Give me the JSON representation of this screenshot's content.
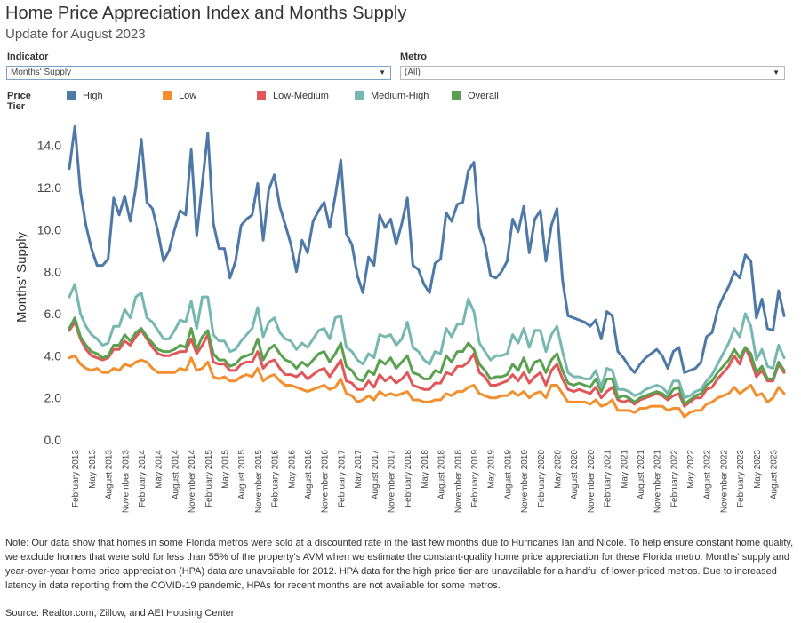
{
  "header": {
    "title": "Home Price Appreciation Index and Months Supply",
    "subtitle": "Update for August 2023"
  },
  "filters": {
    "indicator": {
      "label": "Indicator",
      "value": "Months' Supply"
    },
    "metro": {
      "label": "Metro",
      "value": "(All)"
    }
  },
  "legend": {
    "title": "Price Tier",
    "items": [
      {
        "name": "High",
        "color": "#4e79a7"
      },
      {
        "name": "Low",
        "color": "#f28e2b"
      },
      {
        "name": "Low-Medium",
        "color": "#e15759"
      },
      {
        "name": "Medium-High",
        "color": "#76b7b2"
      },
      {
        "name": "Overall",
        "color": "#59a14f"
      }
    ]
  },
  "chart_data": {
    "type": "line",
    "title": "",
    "xlabel": "",
    "ylabel": "Months' Supply",
    "ylim": [
      0,
      15
    ],
    "yticks": [
      "0.0",
      "2.0",
      "4.0",
      "6.0",
      "8.0",
      "10.0",
      "12.0",
      "14.0"
    ],
    "x_start": "January 2013",
    "x_end": "August 2023",
    "x_tick_labels": [
      "February 2013",
      "May 2013",
      "August 2013",
      "November 2013",
      "February 2014",
      "May 2014",
      "August 2014",
      "November 2014",
      "February 2015",
      "May 2015",
      "August 2015",
      "November 2015",
      "February 2016",
      "May 2016",
      "August 2016",
      "November 2016",
      "February 2017",
      "May 2017",
      "August 2017",
      "November 2017",
      "February 2018",
      "May 2018",
      "August 2018",
      "November 2018",
      "February 2019",
      "May 2019",
      "August 2019",
      "November 2019",
      "February 2020",
      "May 2020",
      "August 2020",
      "November 2020",
      "February 2021",
      "May 2021",
      "August 2021",
      "November 2021",
      "February 2022",
      "May 2022",
      "August 2022",
      "November 2022",
      "February 2023",
      "May 2023",
      "August 2023"
    ],
    "grid": false,
    "series": [
      {
        "name": "High",
        "color": "#4e79a7",
        "values": [
          12.9,
          14.9,
          11.8,
          10.2,
          9.1,
          8.3,
          8.3,
          8.6,
          11.5,
          10.7,
          11.6,
          10.4,
          12.0,
          14.3,
          11.3,
          11.0,
          9.9,
          8.5,
          9.0,
          10.0,
          10.9,
          10.7,
          13.8,
          9.7,
          12.2,
          14.6,
          10.3,
          9.1,
          9.1,
          7.7,
          8.5,
          10.2,
          10.5,
          10.7,
          12.2,
          9.5,
          11.9,
          12.6,
          11.1,
          10.2,
          9.3,
          8.0,
          9.5,
          8.9,
          10.4,
          10.9,
          11.3,
          10.1,
          11.6,
          13.3,
          9.8,
          9.3,
          7.8,
          7.0,
          8.7,
          8.3,
          10.7,
          10.1,
          10.5,
          9.3,
          10.3,
          11.5,
          8.3,
          8.1,
          7.4,
          7.0,
          8.4,
          8.6,
          10.8,
          10.4,
          11.2,
          11.3,
          12.8,
          13.2,
          10.1,
          9.3,
          7.8,
          7.7,
          8.0,
          8.5,
          10.5,
          9.9,
          11.1,
          8.9,
          10.5,
          10.9,
          8.5,
          10.2,
          11.0,
          7.6,
          5.9,
          5.8,
          5.7,
          5.6,
          5.4,
          5.7,
          4.8,
          6.1,
          5.9,
          4.2,
          3.9,
          3.5,
          3.2,
          3.6,
          3.9,
          4.1,
          4.3,
          4.0,
          3.4,
          4.2,
          4.4,
          3.2,
          3.3,
          3.4,
          3.7,
          4.9,
          5.1,
          6.2,
          6.8,
          7.3,
          8.0,
          7.7,
          8.8,
          8.5,
          5.8,
          6.7,
          5.3,
          5.2,
          7.1,
          5.9
        ]
      },
      {
        "name": "Low",
        "color": "#f28e2b",
        "values": [
          3.9,
          4.0,
          3.6,
          3.4,
          3.3,
          3.4,
          3.2,
          3.2,
          3.4,
          3.3,
          3.6,
          3.5,
          3.7,
          3.8,
          3.7,
          3.4,
          3.2,
          3.2,
          3.2,
          3.2,
          3.4,
          3.3,
          3.9,
          3.3,
          3.4,
          3.7,
          3.0,
          2.9,
          3.0,
          2.8,
          2.8,
          3.0,
          3.1,
          3.0,
          3.4,
          2.8,
          3.0,
          3.1,
          2.8,
          2.6,
          2.6,
          2.5,
          2.4,
          2.3,
          2.4,
          2.5,
          2.6,
          2.4,
          2.5,
          2.9,
          2.2,
          2.1,
          1.8,
          1.9,
          2.1,
          1.9,
          2.3,
          2.1,
          2.2,
          2.1,
          2.2,
          2.3,
          1.9,
          1.9,
          1.8,
          1.8,
          1.9,
          1.9,
          2.2,
          2.1,
          2.3,
          2.3,
          2.5,
          2.6,
          2.2,
          2.1,
          2.0,
          2.0,
          2.1,
          2.1,
          2.3,
          2.1,
          2.3,
          2.0,
          2.2,
          2.3,
          2.0,
          2.6,
          2.6,
          2.2,
          1.8,
          1.8,
          1.8,
          1.8,
          1.7,
          1.9,
          1.6,
          1.7,
          1.9,
          1.4,
          1.4,
          1.4,
          1.3,
          1.5,
          1.5,
          1.6,
          1.6,
          1.6,
          1.4,
          1.5,
          1.5,
          1.1,
          1.3,
          1.4,
          1.4,
          1.7,
          1.8,
          2.0,
          2.1,
          2.2,
          2.5,
          2.2,
          2.4,
          2.6,
          2.1,
          2.2,
          1.8,
          2.0,
          2.5,
          2.2
        ]
      },
      {
        "name": "Low-Medium",
        "color": "#e15759",
        "values": [
          5.2,
          5.6,
          4.8,
          4.3,
          4.0,
          3.9,
          3.8,
          3.9,
          4.3,
          4.3,
          4.7,
          4.5,
          4.9,
          5.2,
          4.8,
          4.4,
          4.1,
          4.0,
          4.0,
          4.1,
          4.2,
          4.2,
          4.8,
          4.1,
          4.5,
          5.0,
          3.7,
          3.6,
          3.6,
          3.3,
          3.3,
          3.6,
          3.7,
          3.7,
          4.2,
          3.4,
          3.7,
          3.8,
          3.4,
          3.1,
          3.1,
          3.0,
          3.2,
          2.9,
          3.1,
          3.3,
          3.4,
          3.0,
          3.4,
          3.8,
          2.8,
          2.7,
          2.4,
          2.4,
          2.8,
          2.5,
          3.1,
          2.8,
          3.0,
          2.7,
          2.9,
          3.2,
          2.6,
          2.5,
          2.4,
          2.4,
          2.7,
          2.7,
          3.2,
          3.1,
          3.5,
          3.5,
          3.7,
          4.1,
          3.2,
          3.0,
          2.6,
          2.6,
          2.7,
          2.8,
          3.1,
          2.8,
          3.2,
          2.7,
          3.0,
          3.2,
          2.6,
          3.3,
          3.6,
          2.9,
          2.4,
          2.3,
          2.4,
          2.3,
          2.2,
          2.5,
          2.0,
          2.3,
          2.5,
          1.9,
          1.8,
          1.9,
          1.7,
          1.9,
          2.0,
          2.1,
          2.2,
          2.1,
          1.9,
          2.1,
          2.2,
          1.6,
          1.8,
          2.0,
          2.0,
          2.4,
          2.5,
          2.9,
          3.2,
          3.5,
          4.0,
          3.6,
          4.4,
          3.8,
          3.0,
          3.3,
          2.8,
          2.8,
          3.6,
          3.2
        ]
      },
      {
        "name": "Medium-High",
        "color": "#76b7b2",
        "values": [
          6.8,
          7.4,
          6.0,
          5.4,
          5.0,
          4.8,
          4.5,
          4.6,
          5.4,
          5.4,
          6.2,
          5.8,
          6.8,
          7.0,
          5.8,
          5.6,
          5.2,
          4.8,
          4.8,
          5.2,
          5.7,
          5.6,
          6.6,
          5.3,
          6.8,
          6.8,
          5.0,
          4.7,
          4.7,
          4.2,
          4.3,
          4.7,
          5.0,
          5.3,
          6.3,
          4.9,
          5.6,
          5.8,
          5.1,
          4.8,
          4.7,
          4.3,
          4.6,
          4.4,
          4.8,
          5.2,
          5.3,
          4.8,
          5.8,
          5.9,
          4.4,
          4.2,
          3.8,
          3.6,
          4.1,
          3.9,
          5.0,
          4.9,
          5.0,
          4.5,
          4.8,
          5.6,
          4.4,
          4.2,
          3.8,
          3.6,
          4.2,
          4.1,
          5.3,
          4.9,
          5.5,
          5.5,
          6.7,
          6.1,
          4.6,
          4.2,
          3.8,
          4.0,
          4.0,
          4.1,
          5.0,
          4.6,
          5.3,
          4.4,
          5.2,
          5.2,
          4.2,
          5.0,
          5.4,
          4.2,
          3.2,
          3.0,
          3.0,
          2.9,
          2.9,
          3.3,
          2.5,
          3.4,
          3.3,
          2.4,
          2.4,
          2.3,
          2.1,
          2.2,
          2.4,
          2.5,
          2.6,
          2.5,
          2.2,
          2.8,
          2.8,
          2.0,
          2.1,
          2.3,
          2.4,
          2.8,
          3.1,
          3.6,
          4.1,
          4.6,
          5.3,
          4.9,
          6.0,
          5.4,
          3.8,
          4.3,
          3.5,
          3.4,
          4.5,
          3.9
        ]
      },
      {
        "name": "Overall",
        "color": "#59a14f",
        "values": [
          5.3,
          5.8,
          4.9,
          4.5,
          4.2,
          4.1,
          3.9,
          4.0,
          4.5,
          4.5,
          5.0,
          4.7,
          5.1,
          5.3,
          4.9,
          4.6,
          4.3,
          4.2,
          4.2,
          4.3,
          4.5,
          4.4,
          5.3,
          4.3,
          4.9,
          5.2,
          4.1,
          3.8,
          3.8,
          3.5,
          3.6,
          3.9,
          4.0,
          4.1,
          4.8,
          3.8,
          4.3,
          4.5,
          4.1,
          3.8,
          3.7,
          3.4,
          3.7,
          3.5,
          3.8,
          4.1,
          4.2,
          3.7,
          4.1,
          4.6,
          3.5,
          3.3,
          2.9,
          2.8,
          3.3,
          3.1,
          3.8,
          3.6,
          3.9,
          3.4,
          3.7,
          4.0,
          3.2,
          3.1,
          2.9,
          2.9,
          3.3,
          3.2,
          4.0,
          3.7,
          4.2,
          4.2,
          4.6,
          4.3,
          3.6,
          3.3,
          2.9,
          3.0,
          3.0,
          3.1,
          3.6,
          3.3,
          3.9,
          3.2,
          3.7,
          3.8,
          3.2,
          3.8,
          4.1,
          3.3,
          2.7,
          2.6,
          2.7,
          2.6,
          2.5,
          2.9,
          2.3,
          2.9,
          2.9,
          2.0,
          2.1,
          2.0,
          1.8,
          2.0,
          2.1,
          2.2,
          2.3,
          2.2,
          2.0,
          2.4,
          2.5,
          1.7,
          1.9,
          2.1,
          2.2,
          2.6,
          2.8,
          3.2,
          3.5,
          3.8,
          4.3,
          3.9,
          4.4,
          4.1,
          3.2,
          3.5,
          2.9,
          2.9,
          3.7,
          3.3
        ]
      }
    ]
  },
  "footer": {
    "note": "Note: Our data show that homes in some Florida metros were sold at a discounted rate in the last few months due to Hurricanes Ian and Nicole. To help ensure constant home quality, we exclude homes that were sold for less than 55% of the property's AVM when we estimate the constant-quality home price appreciation for these Florida metro. Months' supply and year-over-year home price appreciation (HPA) data are unavailable for 2012. HPA data for the high price tier are unavailable for a handful of lower-priced metros. Due to increased latency in data reporting from the COVID-19 pandemic, HPAs for recent months are not available for some metros.",
    "source": "Source: Realtor.com, Zillow, and AEI Housing Center"
  }
}
